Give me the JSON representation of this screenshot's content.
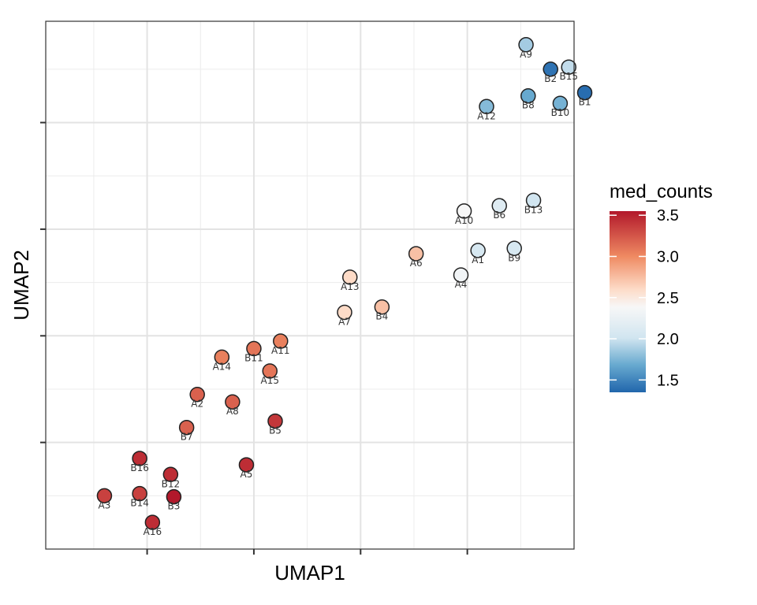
{
  "chart_data": {
    "type": "scatter",
    "title": "",
    "xlabel": "UMAP1",
    "ylabel": "UMAP2",
    "xlim": [
      -3.95,
      1.0
    ],
    "ylim": [
      -1.0,
      3.95
    ],
    "grid": true,
    "x_ticks": [
      -3,
      -2,
      -1,
      0
    ],
    "y_ticks": [
      0,
      1,
      2,
      3
    ],
    "show_tick_labels": false,
    "color_variable": "med_counts",
    "legend": {
      "title": "med_counts",
      "position": "right",
      "ticks": [
        "3.5",
        "3.0",
        "2.5",
        "2.0",
        "1.5"
      ],
      "tick_values": [
        3.5,
        3.0,
        2.5,
        2.0,
        1.5
      ],
      "range": [
        1.35,
        3.55
      ]
    },
    "points": [
      {
        "label": "A9",
        "x": 0.55,
        "y": 3.73,
        "med_counts": 2.05
      },
      {
        "label": "B2",
        "x": 0.78,
        "y": 3.5,
        "med_counts": 1.45
      },
      {
        "label": "B15",
        "x": 0.95,
        "y": 3.52,
        "med_counts": 2.15
      },
      {
        "label": "B1",
        "x": 1.1,
        "y": 3.28,
        "med_counts": 1.4
      },
      {
        "label": "B8",
        "x": 0.57,
        "y": 3.25,
        "med_counts": 1.85
      },
      {
        "label": "B10",
        "x": 0.87,
        "y": 3.18,
        "med_counts": 1.9
      },
      {
        "label": "A12",
        "x": 0.18,
        "y": 3.15,
        "med_counts": 1.95
      },
      {
        "label": "A10",
        "x": -0.03,
        "y": 2.17,
        "med_counts": 2.5
      },
      {
        "label": "B6",
        "x": 0.3,
        "y": 2.22,
        "med_counts": 2.3
      },
      {
        "label": "B13",
        "x": 0.62,
        "y": 2.27,
        "med_counts": 2.2
      },
      {
        "label": "A6",
        "x": -0.48,
        "y": 1.77,
        "med_counts": 2.8
      },
      {
        "label": "A1",
        "x": 0.1,
        "y": 1.8,
        "med_counts": 2.25
      },
      {
        "label": "B9",
        "x": 0.44,
        "y": 1.82,
        "med_counts": 2.25
      },
      {
        "label": "A13",
        "x": -1.1,
        "y": 1.55,
        "med_counts": 2.7
      },
      {
        "label": "A4",
        "x": -0.06,
        "y": 1.57,
        "med_counts": 2.45
      },
      {
        "label": "A7",
        "x": -1.15,
        "y": 1.22,
        "med_counts": 2.7
      },
      {
        "label": "B4",
        "x": -0.8,
        "y": 1.27,
        "med_counts": 2.8
      },
      {
        "label": "A11",
        "x": -1.75,
        "y": 0.95,
        "med_counts": 3.05
      },
      {
        "label": "B11",
        "x": -2.0,
        "y": 0.88,
        "med_counts": 3.1
      },
      {
        "label": "A14",
        "x": -2.3,
        "y": 0.8,
        "med_counts": 3.05
      },
      {
        "label": "A15",
        "x": -1.85,
        "y": 0.67,
        "med_counts": 3.1
      },
      {
        "label": "A2",
        "x": -2.53,
        "y": 0.45,
        "med_counts": 3.2
      },
      {
        "label": "A8",
        "x": -2.2,
        "y": 0.38,
        "med_counts": 3.2
      },
      {
        "label": "B5",
        "x": -1.8,
        "y": 0.2,
        "med_counts": 3.4
      },
      {
        "label": "B7",
        "x": -2.63,
        "y": 0.14,
        "med_counts": 3.2
      },
      {
        "label": "B16",
        "x": -3.07,
        "y": -0.15,
        "med_counts": 3.45
      },
      {
        "label": "A5",
        "x": -2.07,
        "y": -0.21,
        "med_counts": 3.45
      },
      {
        "label": "B12",
        "x": -2.78,
        "y": -0.3,
        "med_counts": 3.45
      },
      {
        "label": "A3",
        "x": -3.4,
        "y": -0.5,
        "med_counts": 3.35
      },
      {
        "label": "B14",
        "x": -3.07,
        "y": -0.48,
        "med_counts": 3.35
      },
      {
        "label": "B3",
        "x": -2.75,
        "y": -0.51,
        "med_counts": 3.55
      },
      {
        "label": "A16",
        "x": -2.95,
        "y": -0.75,
        "med_counts": 3.45
      }
    ]
  }
}
